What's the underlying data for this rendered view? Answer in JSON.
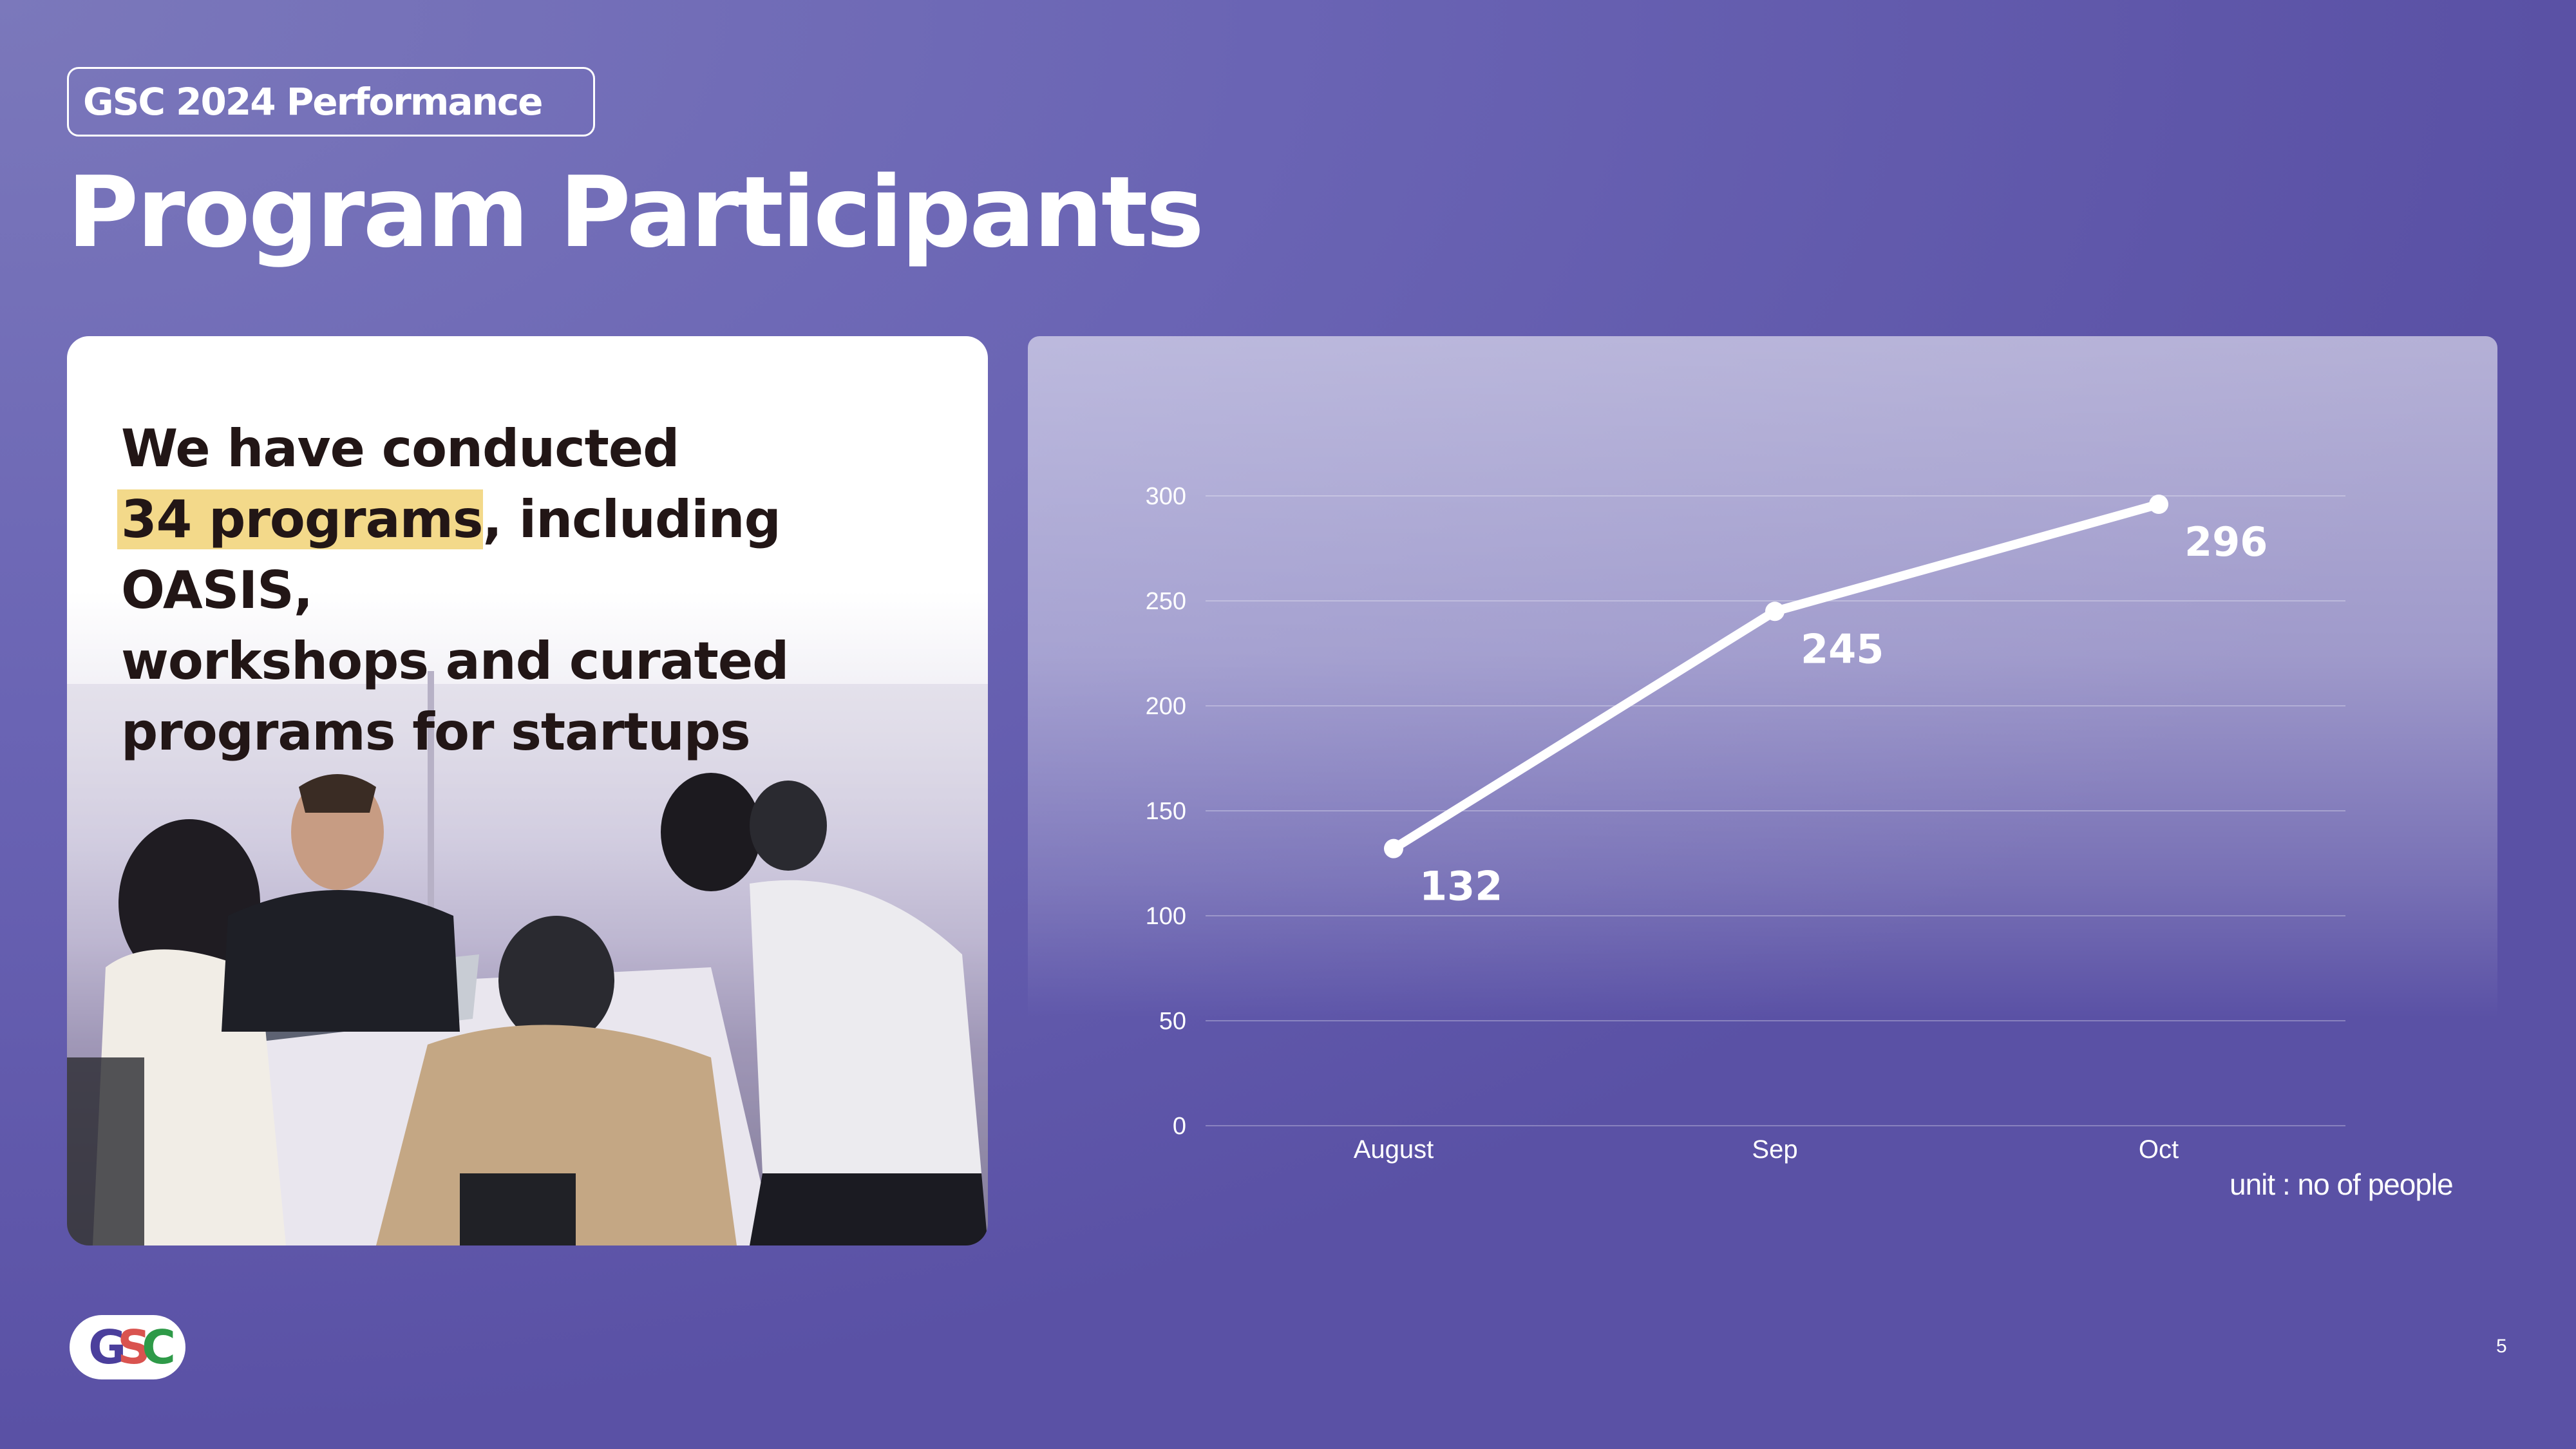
{
  "header": {
    "tag": "GSC 2024 Performance",
    "title": "Program Participants"
  },
  "card": {
    "line1": "We have conducted",
    "highlight": "34 programs",
    "line2_rest": ", including OASIS,",
    "line3": "workshops and curated",
    "line4": "programs for startups"
  },
  "chart_data": {
    "type": "line",
    "categories": [
      "August",
      "Sep",
      "Oct"
    ],
    "series": [
      {
        "values": [
          132,
          245,
          296
        ]
      }
    ],
    "ylim": [
      0,
      300
    ],
    "yticks": [
      0,
      50,
      100,
      150,
      200,
      250,
      300
    ],
    "grid": true,
    "data_labels": [
      "132",
      "245",
      "296"
    ],
    "title": "",
    "xlabel": "",
    "ylabel": "",
    "line_color": "#ffffff"
  },
  "unit_note": "unit : no of people",
  "logo": {
    "letters": [
      "G",
      "S",
      "C"
    ],
    "colors": [
      "#4b3f9c",
      "#d9534f",
      "#2e9a48"
    ]
  },
  "page_number": "5"
}
